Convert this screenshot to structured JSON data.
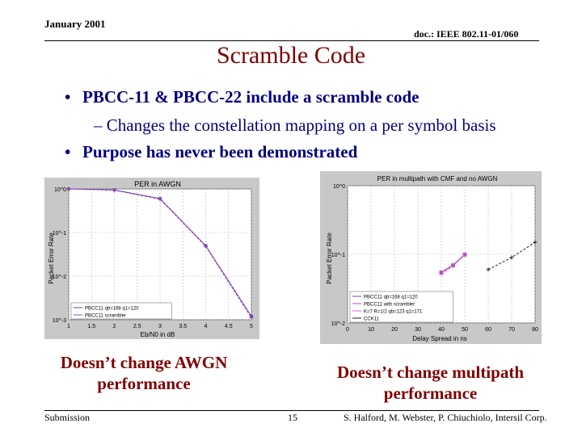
{
  "header": {
    "date": "January 2001",
    "doc": "doc.: IEEE 802.11-01/060"
  },
  "title": "Scramble Code",
  "bullets": [
    {
      "text": "PBCC-11 & PBCC-22 include a scramble code"
    },
    {
      "text": "Changes the constellation mapping on a per symbol basis",
      "level": 2
    },
    {
      "text": "Purpose has never been demonstrated"
    }
  ],
  "chart_data": [
    {
      "type": "line",
      "title": "PER in AWGN",
      "xlabel": "Eb/N0 in dB",
      "ylabel": "Packet Error Rate",
      "x_ticks": [
        "1",
        "1.5",
        "2",
        "2.5",
        "3",
        "3.5",
        "4",
        "4.5",
        "5"
      ],
      "y_ticks": [
        "10^0",
        "10^-1",
        "10^-2",
        "10^-3"
      ],
      "xlim": [
        1,
        5
      ],
      "ylim_log10": [
        -3,
        0
      ],
      "y_scale": "log",
      "grid": true,
      "legend_position": "bottom-left",
      "series": [
        {
          "name": "PBCC11 qb=168 q1=120",
          "color": "#7b3fa8",
          "marker": "circle",
          "x": [
            1,
            2,
            3,
            4,
            5
          ],
          "y": [
            1.0,
            0.95,
            0.6,
            0.05,
            0.0012
          ]
        },
        {
          "name": "PBCC11 scrambler",
          "color": "#8a4fbf",
          "marker": "plus",
          "x": [
            1,
            2,
            3,
            4,
            5
          ],
          "y": [
            1.0,
            0.93,
            0.58,
            0.048,
            0.0011
          ]
        }
      ]
    },
    {
      "type": "line",
      "title": "PER in multipath with CMF and no AWGN",
      "xlabel": "Delay Spread in ns",
      "ylabel": "Packet Error Rate",
      "x_ticks": [
        "0",
        "10",
        "20",
        "30",
        "40",
        "50",
        "60",
        "70",
        "80"
      ],
      "y_ticks": [
        "10^0",
        "10^-1",
        "10^-2"
      ],
      "xlim": [
        0,
        80
      ],
      "ylim_log10": [
        -2,
        0
      ],
      "y_scale": "log",
      "grid": true,
      "legend_position": "bottom-left",
      "series": [
        {
          "name": "PBCC11 qb=168 q1=120",
          "color": "#7b3fa8",
          "marker": "circle",
          "x": [
            40,
            45,
            50
          ],
          "y": [
            0.055,
            0.07,
            0.1
          ]
        },
        {
          "name": "PBCC11 with scrambler",
          "color": "#c040c0",
          "marker": "plus",
          "x": [
            40,
            45,
            50
          ],
          "y": [
            0.052,
            0.068,
            0.098
          ]
        },
        {
          "name": "K=7 R=1/2 qb=123 q1=171",
          "color": "#d060d0",
          "marker": "square",
          "x": [
            40,
            45,
            50
          ],
          "y": [
            0.054,
            0.069,
            0.099
          ]
        },
        {
          "name": "CCK11",
          "color": "#222222",
          "marker": "plus",
          "x": [
            60,
            70,
            80
          ],
          "y": [
            0.06,
            0.09,
            0.15
          ]
        }
      ]
    }
  ],
  "captions": {
    "left": "Doesn’t change AWGN performance",
    "right": "Doesn’t change multipath performance"
  },
  "footer": {
    "left": "Submission",
    "page": "15",
    "right": "S. Halford, M. Webster, P. Chiuchiolo, Intersil Corp."
  }
}
